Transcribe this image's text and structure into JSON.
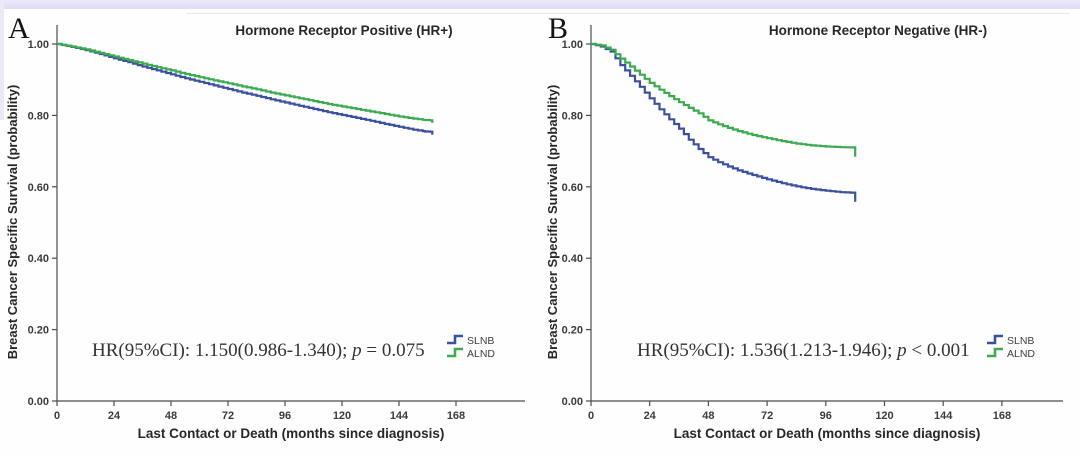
{
  "page": {
    "top_strip_color": "#dcdcf3",
    "background": "#ffffff"
  },
  "chart_data": [
    {
      "type": "line",
      "chart_kind": "kaplan-meier-step",
      "panel_label": "A",
      "title": "Hormone Receptor Positive (HR+)",
      "xlabel": "Last Contact or Death (months since diagnosis)",
      "ylabel": "Breast Cancer Specific Survival (probability)",
      "x_ticks": [
        0,
        24,
        48,
        72,
        96,
        120,
        144,
        168
      ],
      "x_tick_labels": [
        "0",
        "24",
        "48",
        "72",
        "96",
        "120",
        "144",
        "168"
      ],
      "y_ticks": [
        0.0,
        0.2,
        0.4,
        0.6,
        0.8,
        1.0
      ],
      "y_tick_labels": [
        "0.00",
        "0.20",
        "0.40",
        "0.60",
        "0.80",
        "1.00"
      ],
      "x_range": [
        0,
        168
      ],
      "y_range": [
        0.0,
        1.0
      ],
      "grid": false,
      "annotation": {
        "text": "HR(95%CI): 1.150(0.986-1.340); p = 0.075",
        "main": "HR(95%CI): 1.150(0.986-1.340); ",
        "p": "p",
        "rest": " = 0.075"
      },
      "legend": {
        "position": "lower right",
        "entries": [
          {
            "name": "SLNB",
            "color": "#3C50A0"
          },
          {
            "name": "ALND",
            "color": "#3CAB50"
          }
        ]
      },
      "series": [
        {
          "name": "SLNB",
          "color": "#3C50A0",
          "points": [
            [
              0,
              1.0
            ],
            [
              6,
              0.992
            ],
            [
              12,
              0.983
            ],
            [
              18,
              0.972
            ],
            [
              24,
              0.96
            ],
            [
              30,
              0.949
            ],
            [
              36,
              0.937
            ],
            [
              42,
              0.926
            ],
            [
              48,
              0.915
            ],
            [
              54,
              0.904
            ],
            [
              60,
              0.894
            ],
            [
              66,
              0.884
            ],
            [
              72,
              0.874
            ],
            [
              78,
              0.864
            ],
            [
              84,
              0.855
            ],
            [
              90,
              0.845
            ],
            [
              96,
              0.836
            ],
            [
              102,
              0.827
            ],
            [
              108,
              0.818
            ],
            [
              114,
              0.809
            ],
            [
              120,
              0.801
            ],
            [
              126,
              0.793
            ],
            [
              132,
              0.785
            ],
            [
              138,
              0.776
            ],
            [
              144,
              0.768
            ],
            [
              150,
              0.76
            ],
            [
              155,
              0.755
            ],
            [
              158,
              0.754
            ],
            [
              158,
              0.746
            ]
          ]
        },
        {
          "name": "ALND",
          "color": "#3CAB50",
          "points": [
            [
              0,
              1.0
            ],
            [
              6,
              0.993
            ],
            [
              12,
              0.985
            ],
            [
              18,
              0.975
            ],
            [
              24,
              0.965
            ],
            [
              30,
              0.955
            ],
            [
              36,
              0.945
            ],
            [
              42,
              0.935
            ],
            [
              48,
              0.926
            ],
            [
              54,
              0.916
            ],
            [
              60,
              0.907
            ],
            [
              66,
              0.898
            ],
            [
              72,
              0.89
            ],
            [
              78,
              0.881
            ],
            [
              84,
              0.873
            ],
            [
              90,
              0.864
            ],
            [
              96,
              0.856
            ],
            [
              102,
              0.848
            ],
            [
              108,
              0.84
            ],
            [
              114,
              0.832
            ],
            [
              120,
              0.825
            ],
            [
              126,
              0.818
            ],
            [
              132,
              0.811
            ],
            [
              138,
              0.804
            ],
            [
              144,
              0.797
            ],
            [
              150,
              0.791
            ],
            [
              155,
              0.787
            ],
            [
              158,
              0.786
            ],
            [
              158,
              0.779
            ]
          ]
        }
      ]
    },
    {
      "type": "line",
      "chart_kind": "kaplan-meier-step",
      "panel_label": "B",
      "title": "Hormone Receptor Negative (HR-)",
      "xlabel": "Last Contact or Death (months since diagnosis)",
      "ylabel": "Breast Cancer Specific Survival (probability)",
      "x_ticks": [
        0,
        24,
        48,
        72,
        96,
        120,
        144,
        168
      ],
      "x_tick_labels": [
        "0",
        "24",
        "48",
        "72",
        "96",
        "120",
        "144",
        "168"
      ],
      "y_ticks": [
        0.0,
        0.2,
        0.4,
        0.6,
        0.8,
        1.0
      ],
      "y_tick_labels": [
        "0.00",
        "0.20",
        "0.40",
        "0.60",
        "0.80",
        "1.00"
      ],
      "x_range": [
        0,
        168
      ],
      "y_range": [
        0.0,
        1.0
      ],
      "grid": false,
      "annotation": {
        "text": "HR(95%CI): 1.536(1.213-1.946); p < 0.001",
        "main": "HR(95%CI): 1.536(1.213-1.946); ",
        "p": "p",
        "rest": " < 0.001"
      },
      "legend": {
        "position": "lower right",
        "entries": [
          {
            "name": "SLNB",
            "color": "#3C50A0"
          },
          {
            "name": "ALND",
            "color": "#3CAB50"
          }
        ]
      },
      "series": [
        {
          "name": "SLNB",
          "color": "#3C50A0",
          "points": [
            [
              0,
              1.0
            ],
            [
              4,
              0.993
            ],
            [
              8,
              0.979
            ],
            [
              12,
              0.941
            ],
            [
              16,
              0.911
            ],
            [
              20,
              0.88
            ],
            [
              24,
              0.848
            ],
            [
              28,
              0.817
            ],
            [
              32,
              0.789
            ],
            [
              36,
              0.763
            ],
            [
              40,
              0.732
            ],
            [
              44,
              0.706
            ],
            [
              48,
              0.683
            ],
            [
              52,
              0.669
            ],
            [
              56,
              0.657
            ],
            [
              60,
              0.646
            ],
            [
              66,
              0.633
            ],
            [
              72,
              0.621
            ],
            [
              78,
              0.61
            ],
            [
              84,
              0.601
            ],
            [
              90,
              0.594
            ],
            [
              96,
              0.589
            ],
            [
              102,
              0.585
            ],
            [
              108,
              0.583
            ],
            [
              108,
              0.558
            ]
          ]
        },
        {
          "name": "ALND",
          "color": "#3CAB50",
          "points": [
            [
              0,
              1.0
            ],
            [
              4,
              0.996
            ],
            [
              8,
              0.984
            ],
            [
              12,
              0.959
            ],
            [
              16,
              0.937
            ],
            [
              20,
              0.914
            ],
            [
              24,
              0.891
            ],
            [
              28,
              0.872
            ],
            [
              32,
              0.854
            ],
            [
              36,
              0.837
            ],
            [
              40,
              0.821
            ],
            [
              44,
              0.806
            ],
            [
              48,
              0.786
            ],
            [
              52,
              0.775
            ],
            [
              56,
              0.765
            ],
            [
              60,
              0.756
            ],
            [
              66,
              0.745
            ],
            [
              72,
              0.736
            ],
            [
              78,
              0.728
            ],
            [
              84,
              0.721
            ],
            [
              90,
              0.716
            ],
            [
              96,
              0.713
            ],
            [
              102,
              0.711
            ],
            [
              108,
              0.71
            ],
            [
              108,
              0.684
            ]
          ]
        }
      ]
    }
  ]
}
